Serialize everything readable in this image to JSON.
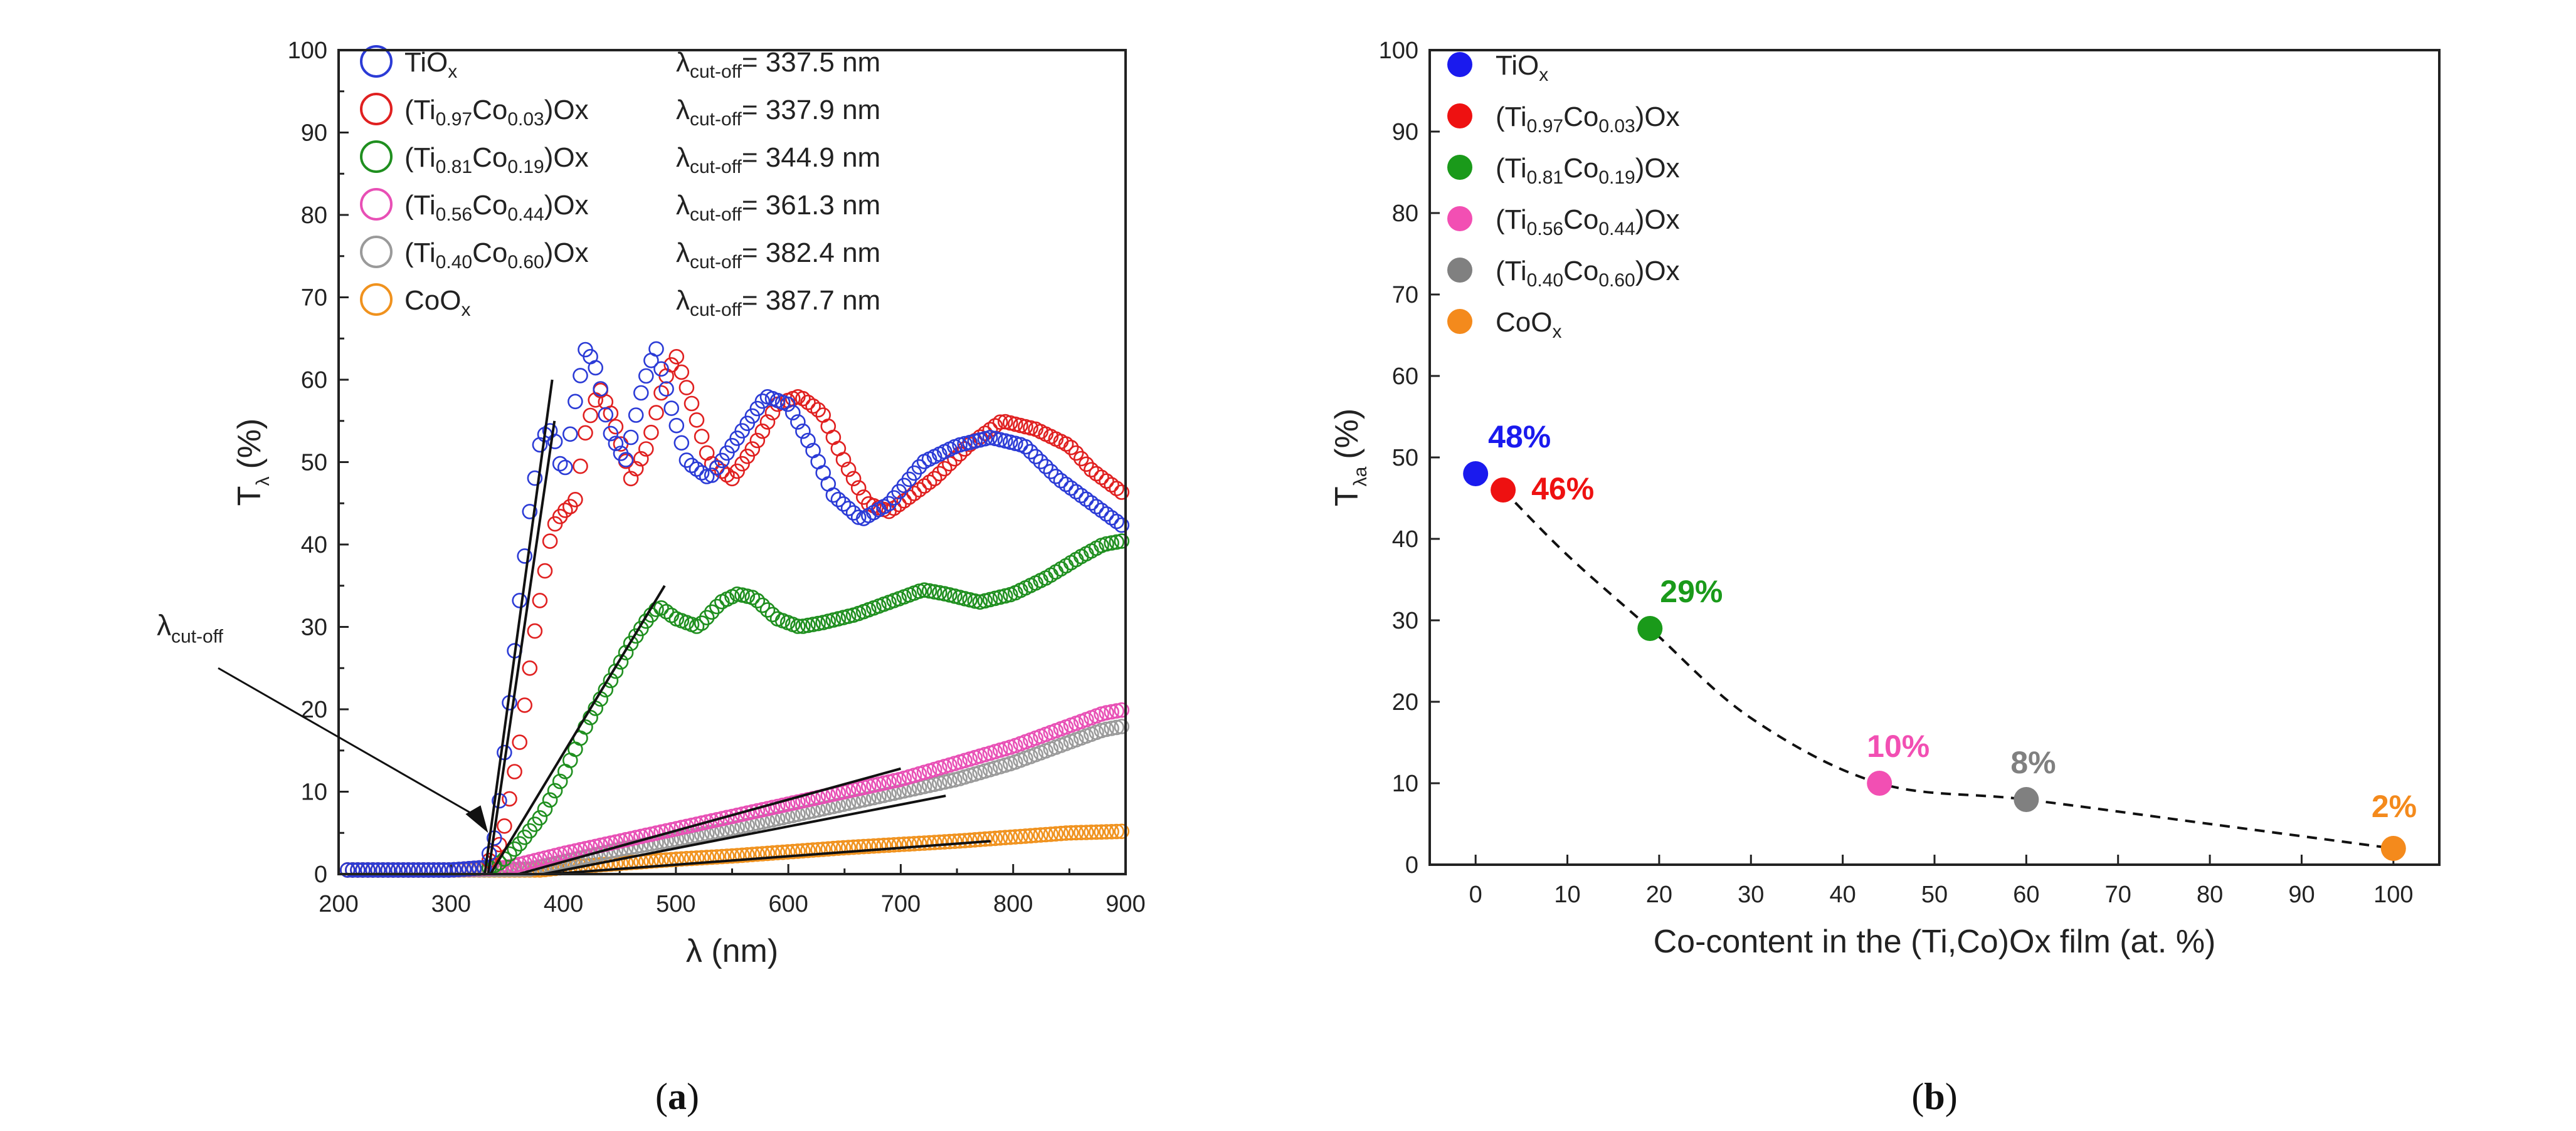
{
  "chart_data": [
    {
      "panel": "a",
      "type": "scatter",
      "caption": "a",
      "xlabel": "λ (nm)",
      "ylabel_main": "T",
      "ylabel_sub": "λ",
      "ylabel_unit": "(%)",
      "xlim": [
        200,
        900
      ],
      "ylim": [
        0,
        100
      ],
      "xticks": [
        "200",
        "300",
        "400",
        "500",
        "600",
        "700",
        "800",
        "900"
      ],
      "yticks": [
        "0",
        "10",
        "20",
        "30",
        "40",
        "50",
        "60",
        "70",
        "80",
        "90",
        "100"
      ],
      "annotation": {
        "main": "λ",
        "sub": "cut-off",
        "x": 333,
        "y": 5
      },
      "lambda_label": {
        "main": "λ",
        "sub": "cut-off"
      },
      "series": [
        {
          "name": "TiOx",
          "color": "#2b3bd6",
          "legend": {
            "main": "TiO",
            "sub1": "x",
            "mid": "",
            "sub2": "",
            "tail": ""
          },
          "cutoff": "= 337.5 nm",
          "points": [
            [
              200,
              0.5
            ],
            [
              300,
              0.5
            ],
            [
              330,
              0.8
            ],
            [
              340,
              5
            ],
            [
              350,
              18
            ],
            [
              360,
              32
            ],
            [
              370,
              44
            ],
            [
              380,
              53
            ],
            [
              390,
              54
            ],
            [
              400,
              48
            ],
            [
              410,
              57
            ],
            [
              420,
              64
            ],
            [
              430,
              61
            ],
            [
              440,
              54
            ],
            [
              455,
              50
            ],
            [
              470,
              59
            ],
            [
              482,
              64
            ],
            [
              495,
              57
            ],
            [
              510,
              50
            ],
            [
              530,
              48
            ],
            [
              555,
              53
            ],
            [
              580,
              58
            ],
            [
              600,
              57
            ],
            [
              620,
              52
            ],
            [
              640,
              46
            ],
            [
              665,
              43
            ],
            [
              690,
              45
            ],
            [
              720,
              50
            ],
            [
              750,
              52
            ],
            [
              780,
              53
            ],
            [
              810,
              52
            ],
            [
              840,
              48
            ],
            [
              870,
              45
            ],
            [
              900,
              42
            ]
          ],
          "tangent": [
            [
              330,
              0
            ],
            [
              390,
              60
            ]
          ]
        },
        {
          "name": "(Ti0.97Co0.03)Ox",
          "color": "#e02020",
          "legend": {
            "main": "(Ti",
            "sub1": "0.97",
            "mid": "Co",
            "sub2": "0.03",
            "tail": ")Ox"
          },
          "cutoff": "= 337.9 nm",
          "points": [
            [
              200,
              0.5
            ],
            [
              300,
              0.5
            ],
            [
              330,
              0.8
            ],
            [
              345,
              4
            ],
            [
              360,
              15
            ],
            [
              375,
              30
            ],
            [
              390,
              42
            ],
            [
              400,
              44
            ],
            [
              410,
              45
            ],
            [
              420,
              54
            ],
            [
              432,
              59
            ],
            [
              445,
              55
            ],
            [
              460,
              48
            ],
            [
              475,
              52
            ],
            [
              490,
              60
            ],
            [
              500,
              63
            ],
            [
              512,
              58
            ],
            [
              530,
              50
            ],
            [
              550,
              48
            ],
            [
              570,
              52
            ],
            [
              590,
              57
            ],
            [
              610,
              58
            ],
            [
              630,
              56
            ],
            [
              650,
              50
            ],
            [
              670,
              45
            ],
            [
              690,
              44
            ],
            [
              710,
              46
            ],
            [
              730,
              48
            ],
            [
              760,
              52
            ],
            [
              790,
              55
            ],
            [
              820,
              54
            ],
            [
              850,
              52
            ],
            [
              870,
              49
            ],
            [
              900,
              46
            ]
          ],
          "tangent": [
            [
              333,
              0
            ],
            [
              392,
              55
            ]
          ]
        },
        {
          "name": "(Ti0.81Co0.19)Ox",
          "color": "#1f8f1f",
          "legend": {
            "main": "(Ti",
            "sub1": "0.81",
            "mid": "Co",
            "sub2": "0.19",
            "tail": ")Ox"
          },
          "cutoff": "= 344.9 nm",
          "points": [
            [
              200,
              0.5
            ],
            [
              300,
              0.5
            ],
            [
              335,
              0.8
            ],
            [
              345,
              1.5
            ],
            [
              360,
              3.5
            ],
            [
              380,
              7
            ],
            [
              400,
              12
            ],
            [
              420,
              18
            ],
            [
              440,
              23
            ],
            [
              460,
              28
            ],
            [
              475,
              31
            ],
            [
              485,
              32.5
            ],
            [
              500,
              31
            ],
            [
              520,
              30
            ],
            [
              540,
              33
            ],
            [
              555,
              34
            ],
            [
              570,
              33.5
            ],
            [
              590,
              31
            ],
            [
              610,
              30
            ],
            [
              630,
              30.5
            ],
            [
              660,
              31.5
            ],
            [
              690,
              33
            ],
            [
              720,
              34.5
            ],
            [
              740,
              34
            ],
            [
              770,
              33
            ],
            [
              800,
              34
            ],
            [
              830,
              36
            ],
            [
              860,
              38.5
            ],
            [
              880,
              40
            ],
            [
              900,
              40.5
            ]
          ],
          "tangent": [
            [
              335,
              0
            ],
            [
              490,
              35
            ]
          ]
        },
        {
          "name": "(Ti0.56Co0.44)Ox",
          "color": "#e84fb5",
          "legend": {
            "main": "(Ti",
            "sub1": "0.56",
            "mid": "Co",
            "sub2": "0.44",
            "tail": ")Ox"
          },
          "cutoff": "= 361.3 nm",
          "points": [
            [
              200,
              0.5
            ],
            [
              300,
              0.5
            ],
            [
              350,
              0.8
            ],
            [
              400,
              2.5
            ],
            [
              450,
              4
            ],
            [
              500,
              5.5
            ],
            [
              550,
              7
            ],
            [
              600,
              8.5
            ],
            [
              650,
              10
            ],
            [
              700,
              11.5
            ],
            [
              750,
              13.5
            ],
            [
              800,
              15.5
            ],
            [
              850,
              18
            ],
            [
              880,
              19.5
            ],
            [
              900,
              20
            ]
          ],
          "tangent": [
            [
              360,
              0
            ],
            [
              700,
              12.8
            ]
          ]
        },
        {
          "name": "(Ti0.40Co0.60)Ox",
          "color": "#9a9a9a",
          "legend": {
            "main": "(Ti",
            "sub1": "0.40",
            "mid": "Co",
            "sub2": "0.60",
            "tail": ")Ox"
          },
          "cutoff": "= 382.4 nm",
          "points": [
            [
              200,
              0.5
            ],
            [
              300,
              0.5
            ],
            [
              370,
              0.6
            ],
            [
              400,
              1.5
            ],
            [
              450,
              3
            ],
            [
              500,
              4.2
            ],
            [
              550,
              5.5
            ],
            [
              600,
              7
            ],
            [
              650,
              8.5
            ],
            [
              700,
              10
            ],
            [
              750,
              11.5
            ],
            [
              800,
              13.5
            ],
            [
              850,
              16
            ],
            [
              880,
              17.5
            ],
            [
              900,
              18
            ]
          ],
          "tangent": [
            [
              382,
              0
            ],
            [
              740,
              9.5
            ]
          ]
        },
        {
          "name": "CoOx",
          "color": "#f0921e",
          "legend": {
            "main": "CoO",
            "sub1": "x",
            "mid": "",
            "sub2": "",
            "tail": ""
          },
          "cutoff": "= 387.7 nm",
          "points": [
            [
              200,
              0.5
            ],
            [
              300,
              0.5
            ],
            [
              380,
              0.5
            ],
            [
              400,
              0.8
            ],
            [
              450,
              1.3
            ],
            [
              500,
              1.8
            ],
            [
              550,
              2.2
            ],
            [
              600,
              2.7
            ],
            [
              650,
              3.2
            ],
            [
              700,
              3.6
            ],
            [
              750,
              4
            ],
            [
              800,
              4.5
            ],
            [
              850,
              5
            ],
            [
              900,
              5.2
            ]
          ],
          "tangent": [
            [
              388,
              0
            ],
            [
              780,
              4
            ]
          ]
        }
      ]
    },
    {
      "panel": "b",
      "type": "scatter",
      "caption": "b",
      "xlabel": "Co-content in the (Ti,Co)Ox film (at. %)",
      "ylabel_main": "T",
      "ylabel_sub": "λa",
      "ylabel_unit": "(%)",
      "xlim": [
        -5,
        105
      ],
      "ylim": [
        0,
        100
      ],
      "xticks": [
        "0",
        "10",
        "20",
        "30",
        "40",
        "50",
        "60",
        "70",
        "80",
        "90",
        "100"
      ],
      "yticks": [
        "0",
        "10",
        "20",
        "30",
        "40",
        "50",
        "60",
        "70",
        "80",
        "90",
        "100"
      ],
      "points": [
        {
          "name": "TiOx",
          "x": 0,
          "y": 48,
          "label": "48%",
          "color": "#1a1aee",
          "legend": {
            "main": "TiO",
            "sub1": "x",
            "mid": "",
            "sub2": "",
            "tail": ""
          }
        },
        {
          "name": "(Ti0.97Co0.03)Ox",
          "x": 3,
          "y": 46,
          "label": "46%",
          "color": "#ee1111",
          "legend": {
            "main": "(Ti",
            "sub1": "0.97",
            "mid": "Co",
            "sub2": "0.03",
            "tail": ")Ox"
          }
        },
        {
          "name": "(Ti0.81Co0.19)Ox",
          "x": 19,
          "y": 29,
          "label": "29%",
          "color": "#1a9a1a",
          "legend": {
            "main": "(Ti",
            "sub1": "0.81",
            "mid": "Co",
            "sub2": "0.19",
            "tail": ")Ox"
          }
        },
        {
          "name": "(Ti0.56Co0.44)Ox",
          "x": 44,
          "y": 10,
          "label": "10%",
          "color": "#f24fb3",
          "legend": {
            "main": "(Ti",
            "sub1": "0.56",
            "mid": "Co",
            "sub2": "0.44",
            "tail": ")Ox"
          }
        },
        {
          "name": "(Ti0.40Co0.60)Ox",
          "x": 60,
          "y": 8,
          "label": "8%",
          "color": "#808080",
          "legend": {
            "main": "(Ti",
            "sub1": "0.40",
            "mid": "Co",
            "sub2": "0.60",
            "tail": ")Ox"
          }
        },
        {
          "name": "CoOx",
          "x": 100,
          "y": 2,
          "label": "2%",
          "color": "#f48a1c",
          "legend": {
            "main": "CoO",
            "sub1": "x",
            "mid": "",
            "sub2": "",
            "tail": ""
          }
        }
      ],
      "trend": [
        [
          3,
          46
        ],
        [
          10,
          38
        ],
        [
          19,
          29
        ],
        [
          30,
          18
        ],
        [
          44,
          10
        ],
        [
          60,
          8
        ],
        [
          80,
          5
        ],
        [
          100,
          2
        ]
      ]
    }
  ]
}
